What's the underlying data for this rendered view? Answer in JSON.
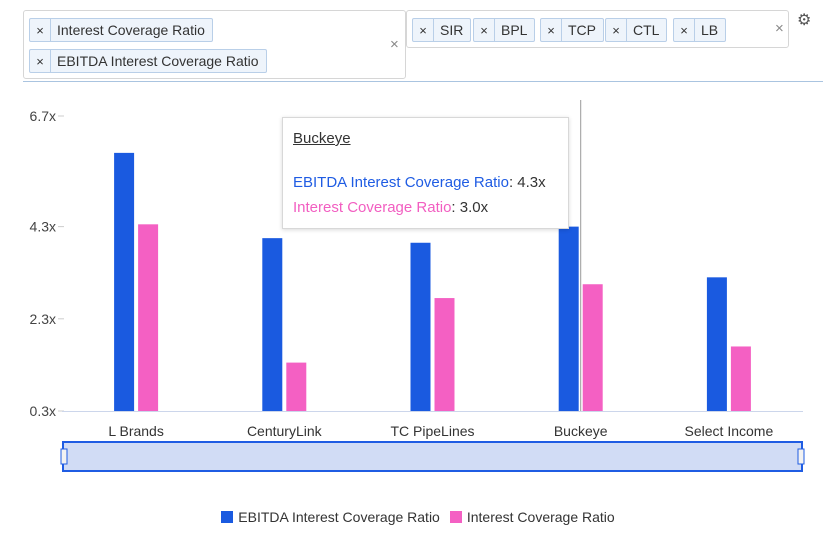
{
  "filters": {
    "metrics": [
      {
        "label": "Interest Coverage Ratio",
        "remove": "×"
      },
      {
        "label": "EBITDA Interest Coverage Ratio",
        "remove": "×"
      }
    ],
    "metrics_clear": "×",
    "tickers": [
      {
        "label": "SIR",
        "remove": "×"
      },
      {
        "label": "BPL",
        "remove": "×"
      },
      {
        "label": "TCP",
        "remove": "×"
      },
      {
        "label": "CTL",
        "remove": "×"
      },
      {
        "label": "LB",
        "remove": "×"
      }
    ],
    "tickers_clear": "×",
    "settings_icon": "gear-icon"
  },
  "tooltip": {
    "title": "Buckeye",
    "rows": [
      {
        "series": "EBITDA Interest Coverage Ratio",
        "value": "4.3x",
        "color": "#1f5ce3"
      },
      {
        "series": "Interest Coverage Ratio",
        "value": "3.0x",
        "color": "#f25ec1"
      }
    ]
  },
  "chart_data": {
    "type": "bar",
    "categories": [
      "L Brands",
      "CenturyLink",
      "TC PipeLines",
      "Buckeye",
      "Select Income"
    ],
    "series": [
      {
        "name": "EBITDA Interest Coverage Ratio",
        "color": "#1a5ae0",
        "values": [
          5.9,
          4.05,
          3.95,
          4.3,
          3.2
        ]
      },
      {
        "name": "Interest Coverage Ratio",
        "color": "#f460c3",
        "values": [
          4.35,
          1.35,
          2.75,
          3.05,
          1.7
        ]
      }
    ],
    "yticks": [
      "6.7x",
      "4.3x",
      "2.3x",
      "0.3x"
    ],
    "ytick_values": [
      6.7,
      4.3,
      2.3,
      0.3
    ],
    "ylim": [
      0.3,
      6.7
    ],
    "highlighted_category": "Buckeye",
    "legend_position": "bottom",
    "grid": false
  }
}
